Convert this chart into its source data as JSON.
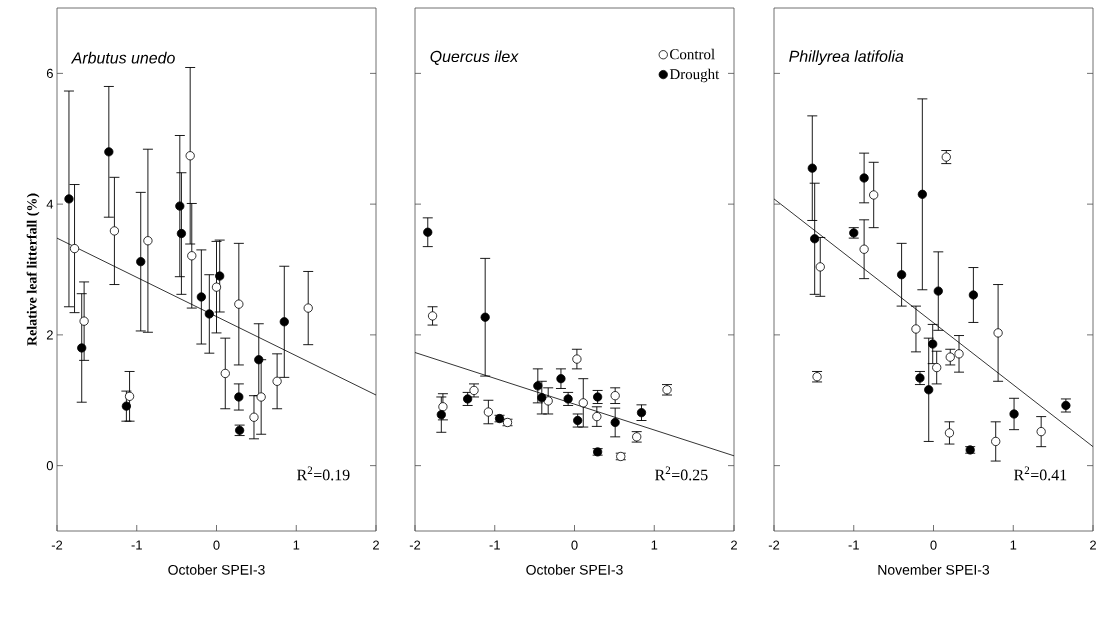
{
  "chart_data": [
    {
      "type": "scatter",
      "title": "Arbutus unedo",
      "xlabel": "October SPEI-3",
      "ylabel": "Relative leaf litterfall (%)",
      "xlim": [
        -2,
        2
      ],
      "xticks": [
        -2,
        -1,
        0,
        1,
        2
      ],
      "ylim": [
        -1,
        7
      ],
      "yticks": [
        0,
        2,
        4,
        6
      ],
      "annotations": [
        "R$^{2}$=0.19"
      ],
      "series": [
        {
          "color": "#ffffff",
          "marker": "circle",
          "x": [
            -1.78,
            -1.66,
            -1.28,
            -1.09,
            -0.86,
            -0.33,
            -0.31,
            0.0,
            0.11,
            0.28,
            0.47,
            0.56,
            0.76,
            1.15
          ],
          "values": [
            3.32,
            2.21,
            3.59,
            1.06,
            3.44,
            4.74,
            3.21,
            2.73,
            1.41,
            2.47,
            0.74,
            1.05,
            1.29,
            2.41
          ],
          "errors": [
            0.98,
            0.6,
            0.82,
            0.38,
            1.4,
            1.35,
            0.8,
            0.7,
            0.54,
            0.93,
            0.33,
            0.57,
            0.42,
            0.56
          ]
        },
        {
          "color": "#000000",
          "marker": "circle",
          "x": [
            -1.85,
            -1.69,
            -1.35,
            -1.13,
            -0.95,
            -0.46,
            -0.44,
            -0.19,
            -0.09,
            0.04,
            0.28,
            0.29,
            0.53,
            0.85
          ],
          "values": [
            4.08,
            1.8,
            4.8,
            0.91,
            3.12,
            3.97,
            3.55,
            2.58,
            2.32,
            2.9,
            1.05,
            0.54,
            1.62,
            2.2
          ],
          "errors": [
            1.65,
            0.83,
            1.0,
            0.23,
            1.06,
            1.08,
            0.93,
            0.72,
            0.6,
            0.55,
            0.2,
            0.08,
            0.55,
            0.85
          ]
        },
        {
          "type": "line",
          "color": "#000000",
          "marker": "none",
          "x": [
            -2,
            2
          ],
          "values": [
            3.48,
            1.08
          ]
        }
      ]
    },
    {
      "type": "scatter",
      "title": "Quercus ilex",
      "xlabel": "October SPEI-3",
      "xlim": [
        -2,
        2
      ],
      "xticks": [
        -2,
        -1,
        0,
        1,
        2
      ],
      "ylim": [
        -1,
        7
      ],
      "yticks": [
        0,
        2,
        4,
        6
      ],
      "tick_labels": "x",
      "legend": "top right",
      "annotations": [
        "R$^{2}$=0.25"
      ],
      "series": [
        {
          "name": "Control",
          "color": "#ffffff",
          "marker": "circle",
          "x": [
            -1.78,
            -1.65,
            -1.26,
            -1.08,
            -0.84,
            -0.33,
            0.03,
            0.11,
            0.28,
            0.51,
            0.58,
            0.78,
            1.16
          ],
          "values": [
            2.29,
            0.9,
            1.15,
            0.82,
            0.66,
            0.99,
            1.63,
            0.96,
            0.75,
            1.07,
            0.14,
            0.44,
            1.16
          ],
          "errors": [
            0.14,
            0.2,
            0.1,
            0.18,
            0.05,
            0.2,
            0.15,
            0.37,
            0.15,
            0.12,
            0.05,
            0.08,
            0.08
          ]
        },
        {
          "name": "Drought",
          "color": "#000000",
          "marker": "circle",
          "x": [
            -1.84,
            -1.67,
            -1.34,
            -1.12,
            -0.94,
            -0.46,
            -0.41,
            -0.17,
            -0.08,
            0.04,
            0.29,
            0.29,
            0.51,
            0.84
          ],
          "values": [
            3.57,
            0.78,
            1.02,
            2.27,
            0.72,
            1.22,
            1.04,
            1.33,
            1.02,
            0.69,
            1.05,
            0.21,
            0.66,
            0.81
          ],
          "errors": [
            0.22,
            0.27,
            0.1,
            0.9,
            0.05,
            0.26,
            0.25,
            0.15,
            0.1,
            0.1,
            0.1,
            0.05,
            0.22,
            0.12
          ]
        },
        {
          "type": "line",
          "color": "#000000",
          "marker": "none",
          "x": [
            -2,
            2
          ],
          "values": [
            1.73,
            0.15
          ]
        }
      ]
    },
    {
      "type": "scatter",
      "title": "Phillyrea latifolia",
      "xlabel": "November SPEI-3",
      "xlim": [
        -2,
        2
      ],
      "xticks": [
        -2,
        -1,
        0,
        1,
        2
      ],
      "ylim": [
        -1,
        7
      ],
      "yticks": [
        0,
        2,
        4,
        6
      ],
      "tick_labels": "x",
      "annotations": [
        "R$^{2}$=0.41"
      ],
      "series": [
        {
          "color": "#ffffff",
          "marker": "circle",
          "x": [
            -1.42,
            -1.46,
            -0.87,
            -0.75,
            -0.22,
            0.04,
            0.16,
            0.2,
            0.21,
            0.32,
            0.78,
            0.81,
            1.35
          ],
          "values": [
            3.04,
            1.36,
            3.31,
            4.14,
            2.09,
            1.5,
            4.72,
            0.5,
            1.66,
            1.71,
            0.37,
            2.03,
            0.52
          ],
          "errors": [
            0.45,
            0.08,
            0.45,
            0.5,
            0.35,
            0.25,
            0.1,
            0.17,
            0.12,
            0.28,
            0.3,
            0.74,
            0.23
          ]
        },
        {
          "color": "#000000",
          "marker": "circle",
          "x": [
            -1.52,
            -1.49,
            -1.0,
            -0.87,
            -0.4,
            -0.17,
            -0.14,
            -0.06,
            -0.01,
            0.06,
            0.46,
            0.5,
            1.01,
            1.66
          ],
          "values": [
            4.55,
            3.47,
            3.56,
            4.4,
            2.92,
            1.34,
            4.15,
            1.16,
            1.86,
            2.67,
            0.24,
            2.61,
            0.79,
            0.92
          ],
          "errors": [
            0.8,
            0.85,
            0.08,
            0.38,
            0.48,
            0.1,
            1.46,
            0.79,
            0.3,
            0.6,
            0.05,
            0.42,
            0.24,
            0.1
          ]
        },
        {
          "type": "line",
          "color": "#000000",
          "marker": "none",
          "x": [
            -2,
            2
          ],
          "values": [
            4.08,
            0.29
          ]
        }
      ]
    }
  ]
}
